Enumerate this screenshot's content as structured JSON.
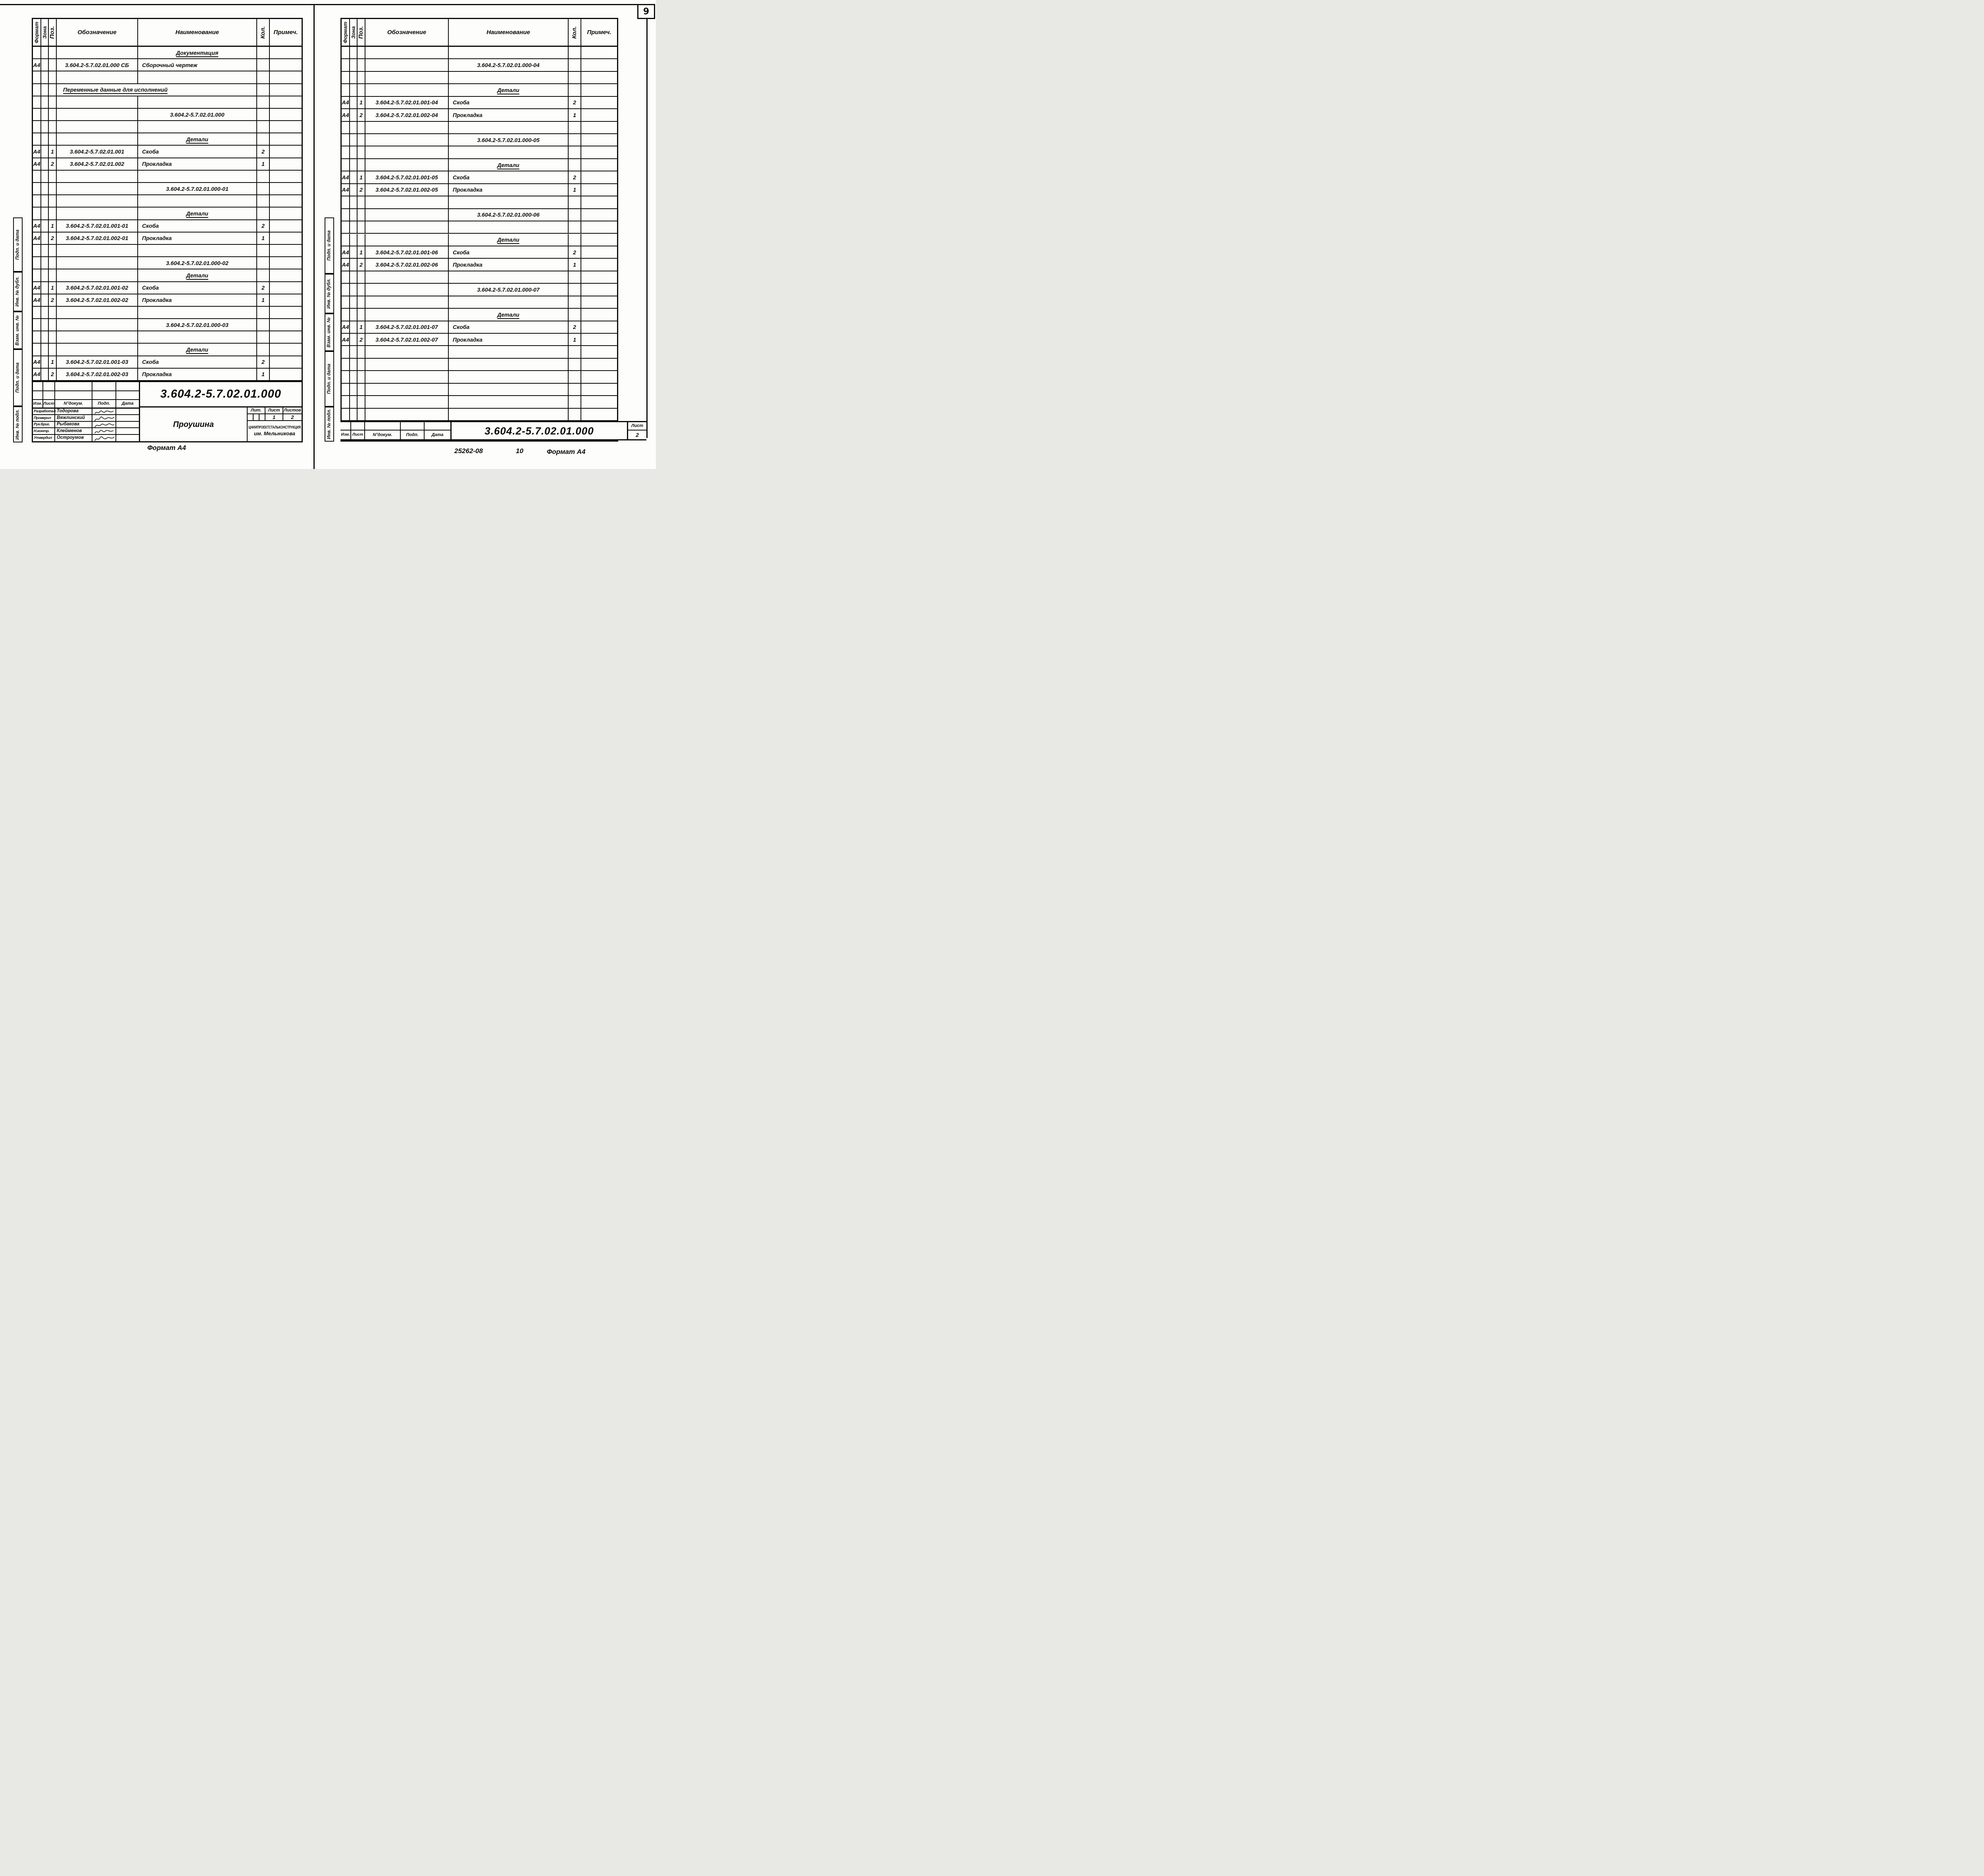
{
  "page_number": "9",
  "columns": {
    "format": "Формат",
    "zone": "Зона",
    "pos": "Поз.",
    "designation": "Обозначение",
    "name": "Наименование",
    "qty": "Кол.",
    "note": "Примеч."
  },
  "sidebar_labels": [
    "Подп. и дата",
    "Инв. № дубл.",
    "Взам. инв. №",
    "Подп. и дата",
    "Инв. № подл."
  ],
  "stamp_labels": {
    "izm": "Изм.",
    "list": "Лист",
    "ndoc": "N°докум.",
    "podp": "Подп.",
    "data": "Дата"
  },
  "left_page": {
    "rows": [
      {
        "t": "group",
        "n": "Документация"
      },
      {
        "t": "item",
        "f": "А4",
        "p": "",
        "d": "3.604.2-5.7.02.01.000 СБ",
        "n": "Сборочный  чертеж",
        "q": ""
      },
      {
        "t": "empty"
      },
      {
        "t": "vars",
        "n": "Переменные  данные  для  исполнений"
      },
      {
        "t": "empty"
      },
      {
        "t": "sub",
        "n": "3.604.2-5.7.02.01.000"
      },
      {
        "t": "empty"
      },
      {
        "t": "group",
        "n": "Детали"
      },
      {
        "t": "item",
        "f": "А4",
        "p": "1",
        "d": "3.604.2-5.7.02.01.001",
        "n": "Скоба",
        "q": "2"
      },
      {
        "t": "item",
        "f": "А4",
        "p": "2",
        "d": "3.604.2-5.7.02.01.002",
        "n": "Прокладка",
        "q": "1"
      },
      {
        "t": "empty"
      },
      {
        "t": "sub",
        "n": "3.604.2-5.7.02.01.000-01"
      },
      {
        "t": "empty"
      },
      {
        "t": "group",
        "n": "Детали"
      },
      {
        "t": "item",
        "f": "А4",
        "p": "1",
        "d": "3.604.2-5.7.02.01.001-01",
        "n": "Скоба",
        "q": "2"
      },
      {
        "t": "item",
        "f": "А4",
        "p": "2",
        "d": "3.604.2-5.7.02.01.002-01",
        "n": "Прокладка",
        "q": "1"
      },
      {
        "t": "empty"
      },
      {
        "t": "sub",
        "n": "3.604.2-5.7.02.01.000-02"
      },
      {
        "t": "group",
        "n": "Детали"
      },
      {
        "t": "item",
        "f": "А4",
        "p": "1",
        "d": "3.604.2-5.7.02.01.001-02",
        "n": "Скоба",
        "q": "2"
      },
      {
        "t": "item",
        "f": "А4",
        "p": "2",
        "d": "3.604.2-5.7.02.01.002-02",
        "n": "Прокладка",
        "q": "1"
      },
      {
        "t": "empty"
      },
      {
        "t": "sub",
        "n": "3.604.2-5.7.02.01.000-03"
      },
      {
        "t": "empty"
      },
      {
        "t": "group",
        "n": "Детали"
      },
      {
        "t": "item",
        "f": "А4",
        "p": "1",
        "d": "3.604.2-5.7.02.01.001-03",
        "n": "Скоба",
        "q": "2"
      },
      {
        "t": "item",
        "f": "А4",
        "p": "2",
        "d": "3.604.2-5.7.02.01.002-03",
        "n": "Прокладка",
        "q": "1"
      }
    ],
    "title_block": {
      "designation": "3.604.2-5.7.02.01.000",
      "product_name": "Проушина",
      "roles": [
        {
          "role": "Разработал",
          "name": "Тодорова"
        },
        {
          "role": "Проверил",
          "name": "Вяжлинский"
        },
        {
          "role": "Рук.бриг.",
          "name": "Рыбакова"
        },
        {
          "role": "Н.контр.",
          "name": "Клейменов"
        },
        {
          "role": "Утвердил",
          "name": "Остроумов"
        }
      ],
      "lit_label": "Лит.",
      "sheet_label": "Лист",
      "sheets_label": "Листов",
      "sheet_value": "1",
      "sheets_value": "2",
      "org_line1": "ЦНИИПРОЕКТСТАЛЬКОНСТРУКЦИЯ",
      "org_line2": "им. Мельникова"
    },
    "footer": "Формат А4"
  },
  "right_page": {
    "rows": [
      {
        "t": "empty"
      },
      {
        "t": "sub",
        "n": "3.604.2-5.7.02.01.000-04"
      },
      {
        "t": "empty"
      },
      {
        "t": "group",
        "n": "Детали"
      },
      {
        "t": "item",
        "f": "А4",
        "p": "1",
        "d": "3.604.2-5.7.02.01.001-04",
        "n": "Скоба",
        "q": "2"
      },
      {
        "t": "item",
        "f": "А4",
        "p": "2",
        "d": "3.604.2-5.7.02.01.002-04",
        "n": "Прокладка",
        "q": "1"
      },
      {
        "t": "empty"
      },
      {
        "t": "sub",
        "n": "3.604.2-5.7.02.01.000-05"
      },
      {
        "t": "empty"
      },
      {
        "t": "group",
        "n": "Детали"
      },
      {
        "t": "item",
        "f": "А4",
        "p": "1",
        "d": "3.604.2-5.7.02.01.001-05",
        "n": "Скоба",
        "q": "2"
      },
      {
        "t": "item",
        "f": "А4",
        "p": "2",
        "d": "3.604.2-5.7.02.01.002-05",
        "n": "Прокладка",
        "q": "1"
      },
      {
        "t": "empty"
      },
      {
        "t": "sub",
        "n": "3.604.2-5.7.02.01.000-06"
      },
      {
        "t": "empty"
      },
      {
        "t": "group",
        "n": "Детали"
      },
      {
        "t": "item",
        "f": "А4",
        "p": "1",
        "d": "3.604.2-5.7.02.01.001-06",
        "n": "Скоба",
        "q": "2"
      },
      {
        "t": "item",
        "f": "А4",
        "p": "2",
        "d": "3.604.2-5.7.02.01.002-06",
        "n": "Прокладка",
        "q": "1"
      },
      {
        "t": "empty"
      },
      {
        "t": "sub",
        "n": "3.604.2-5.7.02.01.000-07"
      },
      {
        "t": "empty"
      },
      {
        "t": "group",
        "n": "Детали"
      },
      {
        "t": "item",
        "f": "А4",
        "p": "1",
        "d": "3.604.2-5.7.02.01.001-07",
        "n": "Скоба",
        "q": "2"
      },
      {
        "t": "item",
        "f": "А4",
        "p": "2",
        "d": "3.604.2-5.7.02.01.002-07",
        "n": "Прокладка",
        "q": "1"
      },
      {
        "t": "empty"
      },
      {
        "t": "empty"
      },
      {
        "t": "empty"
      },
      {
        "t": "empty"
      },
      {
        "t": "empty"
      },
      {
        "t": "empty"
      }
    ],
    "title_block": {
      "designation": "3.604.2-5.7.02.01.000",
      "sheet_label": "Лист",
      "sheet_value": "2"
    },
    "footer": {
      "doc_number": "25262-08",
      "sheet_number": "10",
      "format": "Формат А4"
    }
  }
}
